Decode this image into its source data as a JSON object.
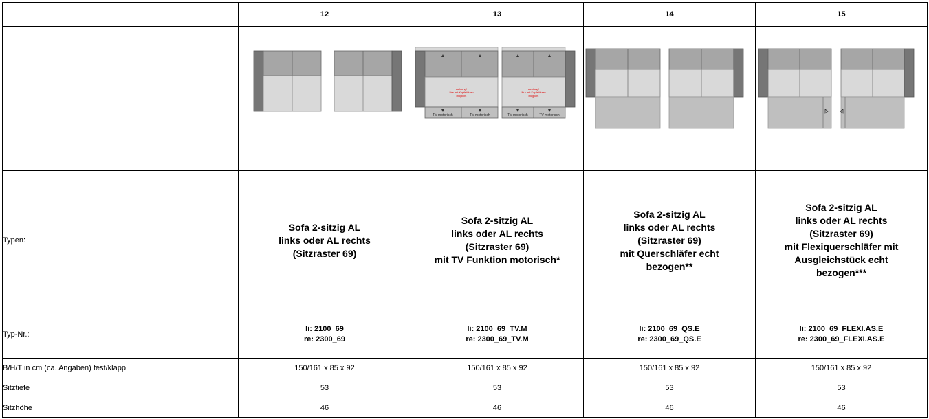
{
  "header": {
    "columns": [
      "12",
      "13",
      "14",
      "15"
    ]
  },
  "rows": {
    "types": {
      "label": "Typen:",
      "values": [
        [
          "Sofa 2-sitzig AL",
          "links  oder AL rechts",
          "(Sitzraster 69)"
        ],
        [
          "Sofa 2-sitzig AL",
          "links oder AL rechts",
          "(Sitzraster 69)",
          "mit TV Funktion motorisch*"
        ],
        [
          "Sofa 2-sitzig AL",
          "links oder AL rechts",
          "(Sitzraster 69)",
          "mit Querschläfer echt",
          "bezogen**"
        ],
        [
          "Sofa 2-sitzig AL",
          "links oder AL rechts",
          "(Sitzraster 69)",
          "mit Flexiquerschläfer  mit",
          "Ausgleichstück echt",
          "bezogen***"
        ]
      ]
    },
    "type_nr": {
      "label": "Typ-Nr.:",
      "values": [
        [
          "li: 2100_69",
          "re: 2300_69"
        ],
        [
          "li: 2100_69_TV.M",
          "re: 2300_69_TV.M"
        ],
        [
          "li: 2100_69_QS.E",
          "re: 2300_69_QS.E"
        ],
        [
          "li: 2100_69_FLEXI.AS.E",
          "re: 2300_69_FLEXI.AS.E"
        ]
      ]
    },
    "dimensions": {
      "label": "B/H/T in cm (ca. Angaben) fest/klapp",
      "values": [
        "150/161 x 85 x 92",
        "150/161 x 85 x 92",
        "150/161 x 85 x 92",
        "150/161 x 85 x 92"
      ]
    },
    "seat_depth": {
      "label": "Sitztiefe",
      "values": [
        "53",
        "53",
        "53",
        "53"
      ]
    },
    "seat_height": {
      "label": "Sitzhöhe",
      "values": [
        "46",
        "46",
        "46",
        "46"
      ]
    }
  },
  "drawings": {
    "tv_warning": [
      "Achtung!",
      "Nur mit Kopfstützen",
      "möglich."
    ],
    "tv_label": "TV motorisch"
  },
  "colors": {
    "backrest": "#a6a6a6",
    "armrest": "#767676",
    "seat": "#d9d9d9",
    "sleeper": "#bfbfbf",
    "warning_text": "#e00000"
  }
}
